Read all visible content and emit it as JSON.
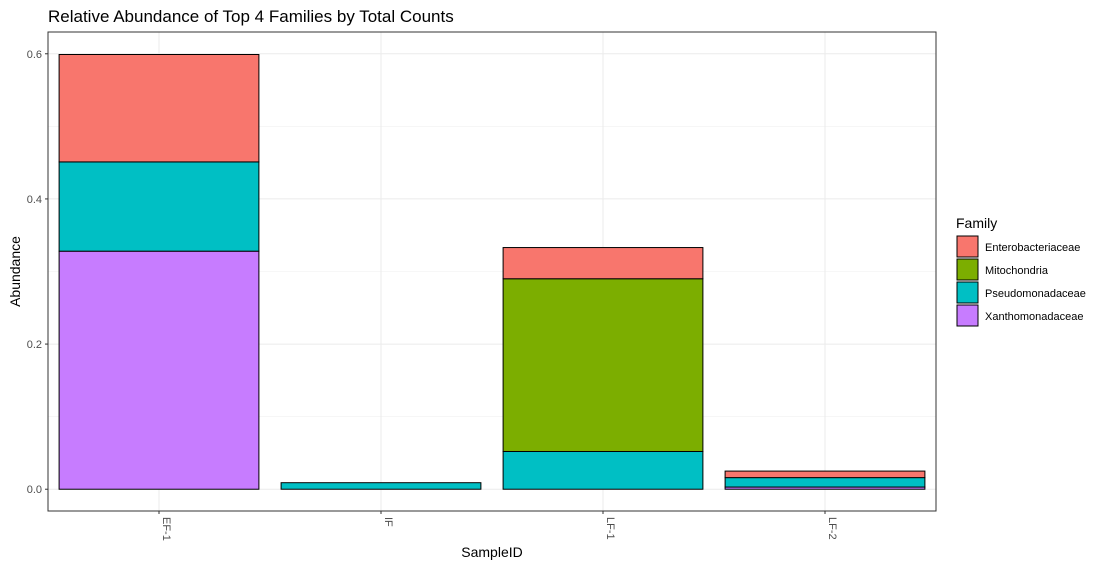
{
  "chart_data": {
    "type": "bar",
    "stacked": true,
    "title": "Relative Abundance of Top 4 Families by Total Counts",
    "xlabel": "SampleID",
    "ylabel": "Abundance",
    "ylim": [
      -0.03,
      0.63
    ],
    "yticks": [
      0.0,
      0.2,
      0.4,
      0.6
    ],
    "ytick_labels": [
      "0.0",
      "0.2",
      "0.4",
      "0.6"
    ],
    "categories": [
      "EF-1",
      "IF",
      "LF-1",
      "LF-2"
    ],
    "grid": true,
    "legend_position": "right",
    "legend_title": "Family",
    "series": [
      {
        "name": "Enterobacteriaceae",
        "color": "#F8766D",
        "values": [
          0.148,
          0.0,
          0.043,
          0.009
        ]
      },
      {
        "name": "Mitochondria",
        "color": "#7CAE00",
        "values": [
          0.0,
          0.0,
          0.238,
          0.0
        ]
      },
      {
        "name": "Pseudomonadaceae",
        "color": "#00BFC4",
        "values": [
          0.123,
          0.009,
          0.052,
          0.013
        ]
      },
      {
        "name": "Xanthomonadaceae",
        "color": "#C77CFF",
        "values": [
          0.328,
          0.0,
          0.0,
          0.003
        ]
      }
    ],
    "stack_order_bottom_to_top": [
      "Xanthomonadaceae",
      "Pseudomonadaceae",
      "Mitochondria",
      "Enterobacteriaceae"
    ]
  }
}
